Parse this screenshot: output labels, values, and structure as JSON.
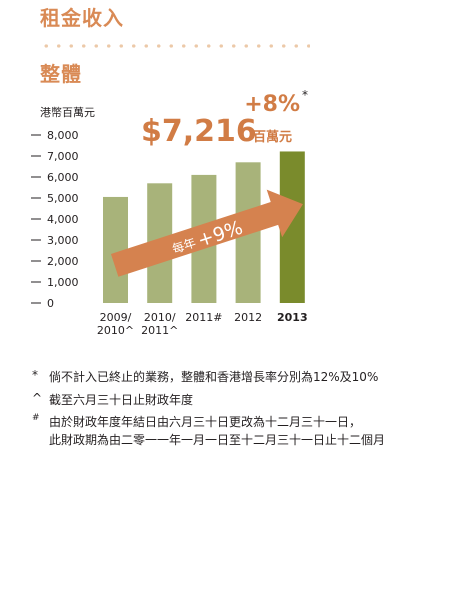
{
  "page": {
    "section_title": "租金收入",
    "subtitle": "整體"
  },
  "chart_data": {
    "type": "bar",
    "ylabel": "港幣百萬元",
    "ylim": [
      0,
      8000
    ],
    "yticks": [
      "8,000",
      "7,000",
      "6,000",
      "5,000",
      "4,000",
      "3,000",
      "2,000",
      "1,000",
      "0"
    ],
    "ytick_values": [
      8000,
      7000,
      6000,
      5000,
      4000,
      3000,
      2000,
      1000,
      0
    ],
    "categories": [
      {
        "line1": "2009/",
        "line2": "2010^",
        "bold": false
      },
      {
        "line1": "2010/",
        "line2": "2011^",
        "bold": false
      },
      {
        "line1": "2011#",
        "line2": "",
        "bold": false
      },
      {
        "line1": "2012",
        "line2": "",
        "bold": false
      },
      {
        "line1": "2013",
        "line2": "",
        "bold": true
      }
    ],
    "values": [
      5050,
      5700,
      6100,
      6700,
      7216
    ],
    "colors": {
      "bar": "#a8b37a",
      "highlight": "#7a8b2c",
      "arrow": "#d5824f",
      "accent": "#d17c45",
      "tick": "#231f20"
    },
    "annotations": {
      "growth": "+8%",
      "growth_mark": "*",
      "total_value": "$7,216",
      "total_unit": "百萬元",
      "cagr_prefix": "每年",
      "cagr_value": "+9%"
    }
  },
  "footnotes": [
    {
      "mark": "*",
      "text": "倘不計入已終止的業務，整體和香港增長率分別為12%及10%"
    },
    {
      "mark": "^",
      "text": "截至六月三十日止財政年度"
    },
    {
      "mark": "#",
      "text": "由於財政年度年結日由六月三十日更改為十二月三十一日，\n此財政期為由二零一一年一月一日至十二月三十一日止十二個月"
    }
  ]
}
